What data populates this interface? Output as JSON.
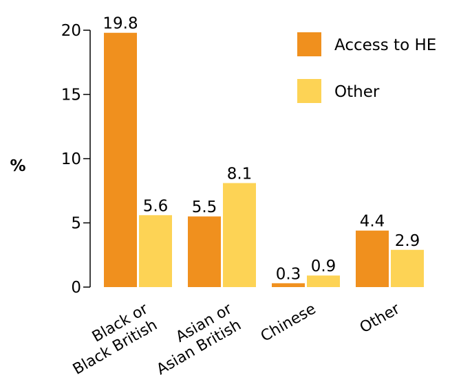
{
  "chart_data": {
    "type": "bar",
    "ylabel": "%",
    "xlabel": "",
    "ylim": [
      0,
      20
    ],
    "y_ticks": [
      0,
      5,
      10,
      15,
      20
    ],
    "grid": false,
    "legend_position": "top-right",
    "categories": [
      [
        "Black or",
        "Black British"
      ],
      [
        "Asian or",
        "Asian British"
      ],
      [
        "Chinese"
      ],
      [
        "Other"
      ]
    ],
    "series": [
      {
        "name": "Access to HE",
        "color": "#F0901E",
        "values": [
          19.8,
          5.5,
          0.3,
          4.4
        ]
      },
      {
        "name": "Other",
        "color": "#FDD355",
        "values": [
          5.6,
          8.1,
          0.9,
          2.9
        ]
      }
    ]
  }
}
